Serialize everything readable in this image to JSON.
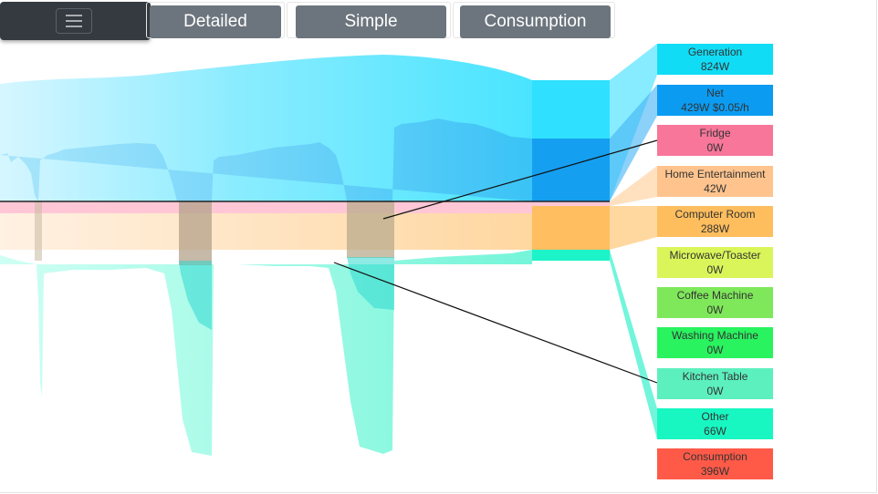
{
  "nav": {
    "menu_icon": "hamburger-icon",
    "tabs": [
      {
        "label": "Detailed"
      },
      {
        "label": "Simple"
      },
      {
        "label": "Consumption"
      }
    ]
  },
  "legend": [
    {
      "name": "Generation",
      "value": "824W",
      "color": "#11dcf5"
    },
    {
      "name": "Net",
      "value": "429W  $0.05/h",
      "color": "#0b9cf2"
    },
    {
      "name": "Fridge",
      "value": "0W",
      "color": "#f7769a"
    },
    {
      "name": "Home Entertainment",
      "value": "42W",
      "color": "#ffc48e"
    },
    {
      "name": "Computer Room",
      "value": "288W",
      "color": "#ffbe5e"
    },
    {
      "name": "Microwave/Toaster",
      "value": "0W",
      "color": "#d9f55a"
    },
    {
      "name": "Coffee Machine",
      "value": "0W",
      "color": "#7ee85a"
    },
    {
      "name": "Washing Machine",
      "value": "0W",
      "color": "#29f35f"
    },
    {
      "name": "Kitchen Table",
      "value": "0W",
      "color": "#5cf0be"
    },
    {
      "name": "Other",
      "value": "66W",
      "color": "#18f7c2"
    },
    {
      "name": "Consumption",
      "value": "396W",
      "color": "#ff5a48"
    }
  ]
}
